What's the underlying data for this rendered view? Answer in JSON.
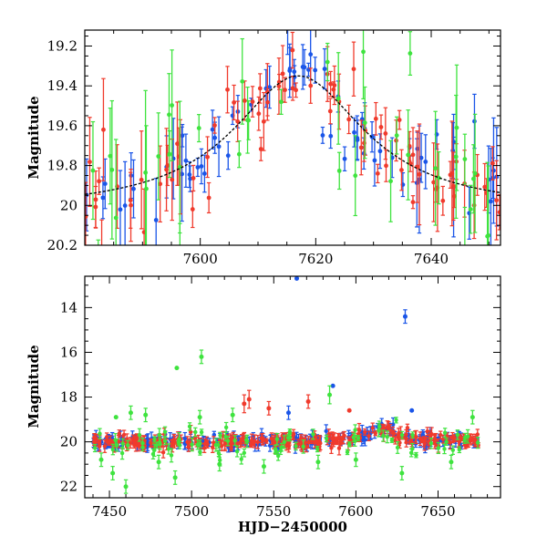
{
  "chart_data": [
    {
      "type": "scatter",
      "title": "",
      "xlabel": "",
      "ylabel": "Magnitude",
      "xlim": [
        7580,
        7652
      ],
      "ylim": [
        20.2,
        19.12
      ],
      "y_inverted": true,
      "xticks": [
        "7600",
        "7620",
        "7640"
      ],
      "yticks": [
        "19.2",
        "19.4",
        "19.6",
        "19.8",
        "20",
        "20.2"
      ],
      "model_curve": {
        "color": "#000000",
        "peak_x": 7617,
        "peak_mag": 19.35,
        "base_mag": 20.03,
        "width": 14
      },
      "series": [
        {
          "color": "#1a55e8",
          "errors": "vertical bars",
          "density": "dense"
        },
        {
          "color": "#f03a2c",
          "errors": "vertical bars",
          "density": "dense"
        },
        {
          "color": "#3fe33f",
          "errors": "vertical bars",
          "density": "sparse"
        }
      ]
    },
    {
      "type": "scatter",
      "title": "",
      "xlabel": "HJD−2450000",
      "ylabel": "Magnitude",
      "xlim": [
        7435,
        7688
      ],
      "ylim": [
        22.5,
        12.6
      ],
      "y_inverted": true,
      "xticks": [
        "7450",
        "7500",
        "7550",
        "7600",
        "7650"
      ],
      "yticks": [
        "14",
        "16",
        "18",
        "20",
        "22"
      ],
      "baseline_mag": 20.0,
      "series": [
        {
          "color": "#1a55e8"
        },
        {
          "color": "#f03a2c"
        },
        {
          "color": "#3fe33f"
        }
      ],
      "outliers": [
        {
          "x": 7564,
          "y": 12.7,
          "err": 0.0,
          "color": "#1a55e8"
        },
        {
          "x": 7630,
          "y": 14.4,
          "err": 0.3,
          "color": "#1a55e8"
        },
        {
          "x": 7491,
          "y": 16.7,
          "err": 0.0,
          "color": "#3fe33f"
        },
        {
          "x": 7506,
          "y": 16.2,
          "err": 0.3,
          "color": "#3fe33f"
        },
        {
          "x": 7586,
          "y": 17.5,
          "err": 0.0,
          "color": "#1a55e8"
        },
        {
          "x": 7535,
          "y": 18.1,
          "err": 0.4,
          "color": "#f03a2c"
        },
        {
          "x": 7532,
          "y": 18.3,
          "err": 0.4,
          "color": "#f03a2c"
        },
        {
          "x": 7547,
          "y": 18.5,
          "err": 0.3,
          "color": "#f03a2c"
        },
        {
          "x": 7571,
          "y": 18.2,
          "err": 0.3,
          "color": "#f03a2c"
        },
        {
          "x": 7596,
          "y": 18.6,
          "err": 0.0,
          "color": "#f03a2c"
        },
        {
          "x": 7634,
          "y": 18.6,
          "err": 0.0,
          "color": "#1a55e8"
        },
        {
          "x": 7584,
          "y": 17.9,
          "err": 0.4,
          "color": "#3fe33f"
        },
        {
          "x": 7525,
          "y": 18.8,
          "err": 0.3,
          "color": "#3fe33f"
        },
        {
          "x": 7463,
          "y": 18.7,
          "err": 0.3,
          "color": "#3fe33f"
        },
        {
          "x": 7505,
          "y": 18.9,
          "err": 0.3,
          "color": "#3fe33f"
        },
        {
          "x": 7559,
          "y": 18.7,
          "err": 0.3,
          "color": "#1a55e8"
        },
        {
          "x": 7671,
          "y": 18.9,
          "err": 0.3,
          "color": "#3fe33f"
        },
        {
          "x": 7472,
          "y": 18.8,
          "err": 0.3,
          "color": "#3fe33f"
        },
        {
          "x": 7454,
          "y": 18.9,
          "err": 0.0,
          "color": "#3fe33f"
        },
        {
          "x": 7460,
          "y": 22.0,
          "err": 0.3,
          "color": "#3fe33f"
        },
        {
          "x": 7452,
          "y": 21.4,
          "err": 0.3,
          "color": "#3fe33f"
        },
        {
          "x": 7490,
          "y": 21.6,
          "err": 0.3,
          "color": "#3fe33f"
        },
        {
          "x": 7628,
          "y": 21.4,
          "err": 0.3,
          "color": "#3fe33f"
        },
        {
          "x": 7658,
          "y": 20.9,
          "err": 0.3,
          "color": "#3fe33f"
        },
        {
          "x": 7544,
          "y": 21.1,
          "err": 0.3,
          "color": "#3fe33f"
        },
        {
          "x": 7517,
          "y": 21.0,
          "err": 0.3,
          "color": "#3fe33f"
        },
        {
          "x": 7445,
          "y": 20.8,
          "err": 0.3,
          "color": "#3fe33f"
        },
        {
          "x": 7600,
          "y": 20.8,
          "err": 0.3,
          "color": "#3fe33f"
        },
        {
          "x": 7577,
          "y": 20.9,
          "err": 0.3,
          "color": "#3fe33f"
        },
        {
          "x": 7480,
          "y": 20.9,
          "err": 0.3,
          "color": "#3fe33f"
        }
      ]
    }
  ]
}
